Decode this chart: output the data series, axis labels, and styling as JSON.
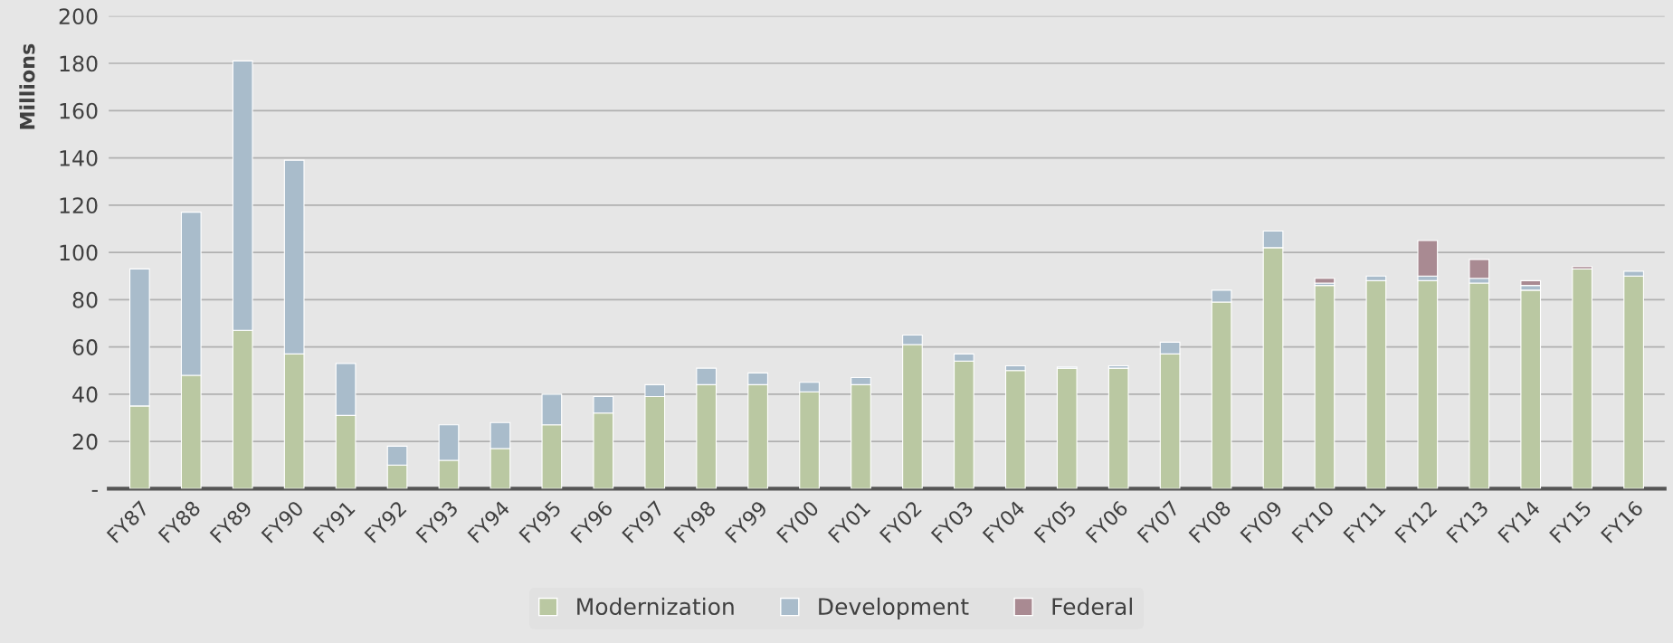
{
  "chart_data": {
    "type": "bar",
    "stacked": true,
    "ylabel": "Millions",
    "categories": [
      "FY87",
      "FY88",
      "FY89",
      "FY90",
      "FY91",
      "FY92",
      "FY93",
      "FY94",
      "FY95",
      "FY96",
      "FY97",
      "FY98",
      "FY99",
      "FY00",
      "FY01",
      "FY02",
      "FY03",
      "FY04",
      "FY05",
      "FY06",
      "FY07",
      "FY08",
      "FY09",
      "FY10",
      "FY11",
      "FY12",
      "FY13",
      "FY14",
      "FY15",
      "FY16"
    ],
    "series": [
      {
        "name": "Modernization",
        "color": "#bac8a2",
        "values": [
          35,
          48,
          67,
          57,
          31,
          10,
          12,
          17,
          27,
          32,
          39,
          44,
          44,
          41,
          44,
          61,
          54,
          50,
          51,
          51,
          57,
          79,
          102,
          86,
          88,
          88,
          87,
          84,
          93,
          90
        ]
      },
      {
        "name": "Development",
        "color": "#a9bccb",
        "values": [
          58,
          69,
          114,
          82,
          22,
          8,
          15,
          11,
          13,
          7,
          5,
          7,
          5,
          4,
          3,
          4,
          3,
          2,
          0.5,
          1,
          5,
          5,
          7,
          1,
          2,
          2,
          2,
          2,
          null,
          2
        ]
      },
      {
        "name": "Federal",
        "color": "#a98a92",
        "values": [
          null,
          null,
          null,
          null,
          null,
          null,
          null,
          null,
          null,
          null,
          null,
          null,
          null,
          null,
          null,
          null,
          null,
          null,
          null,
          null,
          null,
          null,
          null,
          2,
          null,
          15,
          8,
          2,
          1,
          null
        ]
      }
    ],
    "ylim": [
      0,
      200
    ],
    "yticks": [
      {
        "value": 0,
        "label": "-"
      },
      20,
      40,
      60,
      80,
      100,
      120,
      140,
      160,
      180,
      200
    ],
    "grid": "y",
    "legend": "bottom"
  }
}
